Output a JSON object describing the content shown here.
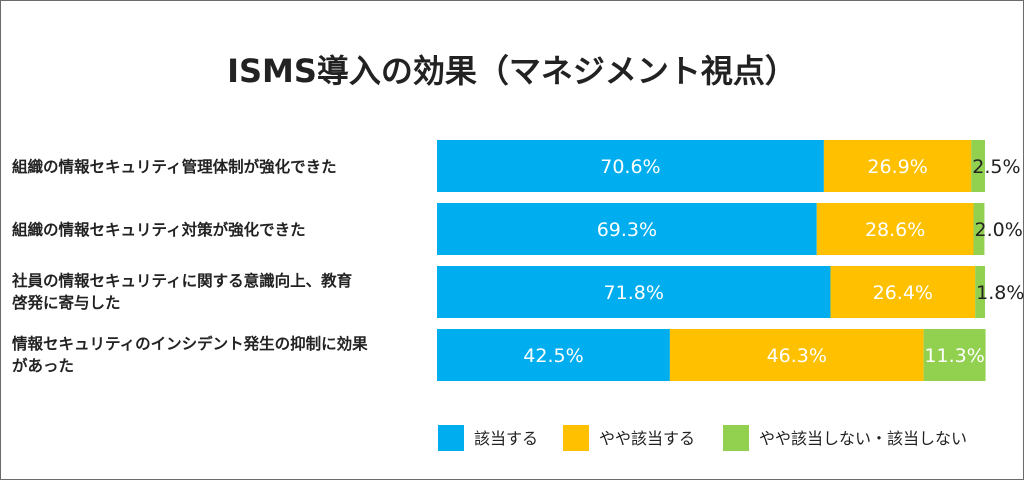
{
  "chart_data": {
    "type": "bar",
    "orientation": "horizontal",
    "stacked": "percent",
    "title": "ISMS導入の効果（マネジメント視点）",
    "categories": [
      [
        "組織の情報セキュリティ管理体制が強化できた"
      ],
      [
        "組織の情報セキュリティ対策が強化できた"
      ],
      [
        "社員の情報セキュリティに関する意識向上、教育",
        "啓発に寄与した"
      ],
      [
        "情報セキュリティのインシデント発生の抑制に効果",
        "があった"
      ]
    ],
    "series": [
      {
        "name": "該当する",
        "color": "#00aeef",
        "values": [
          70.6,
          69.3,
          71.8,
          42.5
        ],
        "labels": [
          "70.6%",
          "69.3%",
          "71.8%",
          "42.5%"
        ]
      },
      {
        "name": "やや該当する",
        "color": "#ffc000",
        "values": [
          26.9,
          28.6,
          26.4,
          46.3
        ],
        "labels": [
          "26.9%",
          "28.6%",
          "26.4%",
          "46.3%"
        ]
      },
      {
        "name": "やや該当しない・該当しない",
        "color": "#92d050",
        "values": [
          2.5,
          2.0,
          1.8,
          11.3
        ],
        "labels": [
          "2.5%",
          "2.0%",
          "1.8%",
          "11.3%"
        ]
      }
    ],
    "xlim": [
      0,
      100
    ],
    "grid": false,
    "legend_position": "bottom-right"
  }
}
